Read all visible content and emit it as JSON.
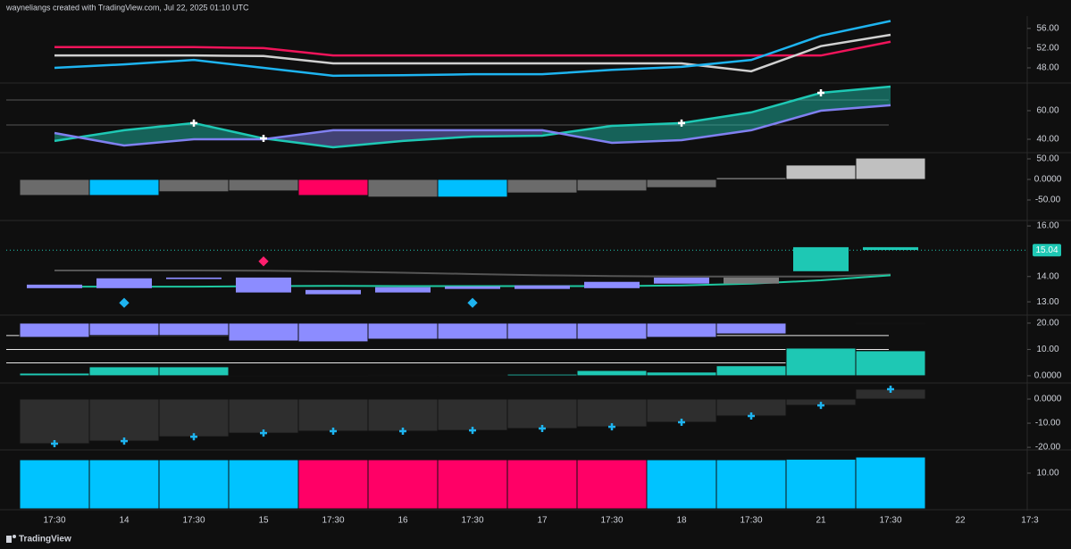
{
  "header": {
    "credit": "wayneliangs created with TradingView.com, Jul 22, 2025 01:10 UTC"
  },
  "footer": {
    "brand": "TradingView"
  },
  "time_axis": [
    "17:30",
    "14",
    "17:30",
    "15",
    "17:30",
    "16",
    "17:30",
    "17",
    "17:30",
    "18",
    "17:30",
    "21",
    "17:30",
    "22",
    "17:3"
  ],
  "chart_data": [
    {
      "type": "line",
      "ylim": [
        45.1,
        58.5
      ],
      "yticks": [
        {
          "value": 56,
          "label": "56.00"
        },
        {
          "value": 52,
          "label": "52.00"
        },
        {
          "value": 48,
          "label": "48.00"
        }
      ],
      "series": [
        {
          "color": "#f0145a",
          "values": [
            52.2,
            52.2,
            52.2,
            52.0,
            50.5,
            50.5,
            50.5,
            50.5,
            50.5,
            50.5,
            50.5,
            50.5,
            53.3
          ]
        },
        {
          "color": "#d0d0d0",
          "values": [
            50.5,
            50.5,
            50.5,
            50.4,
            48.9,
            48.9,
            48.9,
            48.9,
            48.9,
            48.9,
            47.3,
            52.4,
            54.7
          ]
        },
        {
          "color": "#1eb4f0",
          "values": [
            48.0,
            48.7,
            49.6,
            48.0,
            46.4,
            46.5,
            46.7,
            46.7,
            47.6,
            48.2,
            49.6,
            54.5,
            57.5
          ]
        }
      ]
    },
    {
      "type": "band",
      "ylim": [
        31.25,
        78.75
      ],
      "yticks": [
        {
          "value": 60,
          "label": "60.00"
        },
        {
          "value": 40,
          "label": "40.00"
        }
      ],
      "levels": [
        67.5,
        50
      ],
      "series": [
        {
          "color": "#1ec8b4",
          "values": [
            38.8,
            46.3,
            51.3,
            40.6,
            34.4,
            38.8,
            41.9,
            42.5,
            49.4,
            51.3,
            58.8,
            72.5,
            76.9
          ]
        },
        {
          "color": "#8080f0",
          "values": [
            44.4,
            35.6,
            40.0,
            40.0,
            46.3,
            46.3,
            46.3,
            46.3,
            37.5,
            39.4,
            46.3,
            60.0,
            63.8
          ]
        }
      ],
      "markers": {
        "series": 0,
        "color": "#ffffff",
        "indices": [
          2,
          3,
          9,
          11
        ]
      }
    },
    {
      "type": "bar",
      "ylim": [
        -97.8,
        63
      ],
      "yticks": [
        {
          "value": 50,
          "label": "50.00"
        },
        {
          "value": 0,
          "label": "0.0000"
        },
        {
          "value": -50,
          "label": "-50.00"
        }
      ],
      "series": [
        {
          "base": 0,
          "values": [
            -39,
            -39,
            -30,
            -28,
            -39,
            -43,
            -43,
            -33,
            -28,
            -20,
            4,
            35,
            52
          ],
          "colors": [
            "#6b6b6b",
            "#00bfff",
            "#6b6b6b",
            "#6b6b6b",
            "#ff0060",
            "#6b6b6b",
            "#00bfff",
            "#6b6b6b",
            "#6b6b6b",
            "#6b6b6b",
            "#c0c0c0",
            "#c0c0c0",
            "#c0c0c0"
          ]
        }
      ]
    },
    {
      "type": "box",
      "ylim": [
        12.51,
        16.18
      ],
      "yticks": [
        {
          "value": 16,
          "label": "16.00"
        },
        {
          "value": 14,
          "label": "14.00"
        },
        {
          "value": 13,
          "label": "13.00"
        }
      ],
      "last_value": {
        "value": 15.04,
        "label": "15.04",
        "color": "#1ec8b4"
      },
      "open": [
        13.68,
        13.93,
        13.96,
        13.96,
        13.47,
        13.58,
        13.61,
        13.65,
        13.79,
        13.96,
        13.96,
        15.16,
        15.16
      ],
      "close": [
        13.54,
        13.54,
        13.9,
        13.37,
        13.3,
        13.37,
        13.51,
        13.51,
        13.54,
        13.72,
        13.72,
        14.21,
        15.05
      ],
      "box_colors": [
        "#8c8cff",
        "#8c8cff",
        "#8c8cff",
        "#8c8cff",
        "#8c8cff",
        "#8c8cff",
        "#8c8cff",
        "#8c8cff",
        "#8c8cff",
        "#8c8cff",
        "#7a7a7a",
        "#1ec8b4",
        "#1ec8b4"
      ],
      "series": [
        {
          "color": "#555555",
          "values": [
            14.24,
            14.24,
            14.24,
            14.23,
            14.2,
            14.15,
            14.1,
            14.05,
            14.02,
            14.0,
            14.0,
            14.0,
            14.08
          ]
        },
        {
          "color": "#1ec8a0",
          "values": [
            13.6,
            13.6,
            13.6,
            13.62,
            13.63,
            13.62,
            13.62,
            13.62,
            13.62,
            13.65,
            13.72,
            13.85,
            14.05
          ]
        }
      ],
      "diamonds": [
        {
          "index": 1,
          "value": 12.96,
          "color": "#1eb4f0"
        },
        {
          "index": 3,
          "value": 14.6,
          "color": "#ff1e6e"
        },
        {
          "index": 6,
          "value": 12.96,
          "color": "#1eb4f0"
        }
      ]
    },
    {
      "type": "bar",
      "ylim": [
        -2.4,
        22.7
      ],
      "yticks": [
        {
          "value": 20,
          "label": "20.00"
        },
        {
          "value": 10,
          "label": "10.00"
        },
        {
          "value": 0,
          "label": "0.0000"
        }
      ],
      "levels": [
        15.3,
        10,
        4.9
      ],
      "series": [
        {
          "base": 20,
          "color": "#8c8cff",
          "values": [
            14.6,
            15.3,
            15.3,
            13.2,
            12.9,
            13.9,
            13.9,
            13.9,
            13.9,
            14.6,
            15.9,
            null,
            19.7
          ]
        },
        {
          "base": 0,
          "color": "#1ec8b4",
          "values": [
            1.0,
            3.4,
            3.4,
            0.1,
            0.1,
            0.3,
            0.3,
            0.6,
            2.0,
            1.4,
            3.8,
            10.5,
            9.5
          ]
        }
      ]
    },
    {
      "type": "bar",
      "ylim": [
        -20.7,
        6.3
      ],
      "yticks": [
        {
          "value": 0,
          "label": "0.0000"
        },
        {
          "value": -10,
          "label": "-10.00"
        },
        {
          "value": -20,
          "label": "-20.00"
        }
      ],
      "series": [
        {
          "base": 0,
          "color": "#2e2e2e",
          "values": [
            -18.5,
            -17.4,
            -15.6,
            -14.1,
            -13.3,
            -13.3,
            -13.0,
            -12.2,
            -11.5,
            -9.6,
            -7.0,
            -2.6,
            4.1
          ]
        }
      ],
      "markers": {
        "series": 0,
        "color": "#1eb4f0",
        "indices": [
          0,
          1,
          2,
          3,
          4,
          5,
          6,
          7,
          8,
          9,
          10,
          11,
          12
        ]
      }
    },
    {
      "type": "bar",
      "ylim": [
        0,
        16.25
      ],
      "yticks": [
        {
          "value": 10,
          "label": "10.00"
        }
      ],
      "series": [
        {
          "base": 0,
          "values": [
            13.75,
            13.75,
            13.75,
            13.75,
            13.75,
            13.75,
            13.75,
            13.75,
            13.75,
            13.75,
            13.75,
            13.9,
            14.5
          ],
          "colors": [
            "#00c3ff",
            "#00c3ff",
            "#00c3ff",
            "#00c3ff",
            "#ff0066",
            "#ff0066",
            "#ff0066",
            "#ff0066",
            "#ff0066",
            "#00c3ff",
            "#00c3ff",
            "#00c3ff",
            "#00c3ff"
          ]
        }
      ]
    }
  ]
}
